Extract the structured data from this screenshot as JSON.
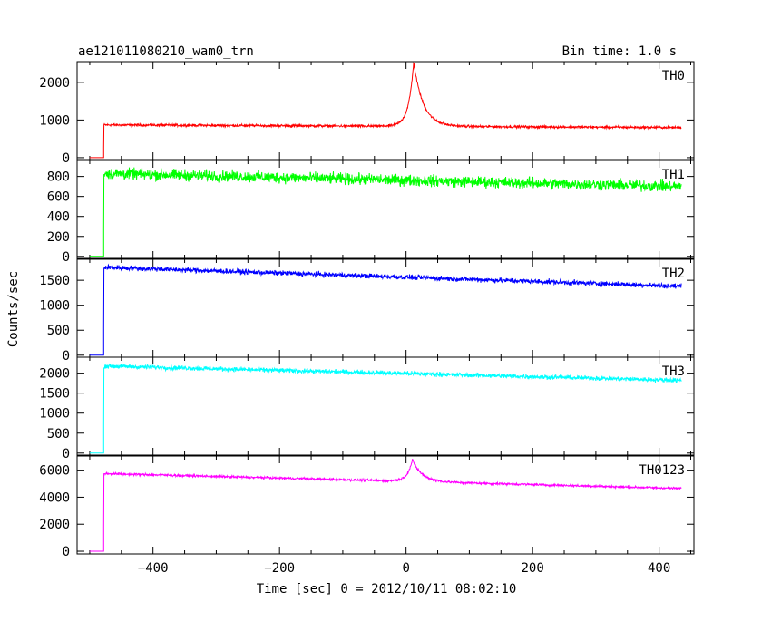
{
  "chart_data": {
    "type": "line",
    "title": "ae121011080210_wam0_trn",
    "bin_time_label": "Bin time: 1.0 s",
    "xlabel": "Time [sec] 0 = 2012/10/11 08:02:10",
    "ylabel": "Counts/sec",
    "xlim": [
      -520,
      455
    ],
    "x_ticks": [
      -400,
      -200,
      0,
      200,
      400
    ],
    "trigger_start": -478,
    "data_end": 435,
    "panels": [
      {
        "name": "TH0",
        "color": "#ff0000",
        "ylim": [
          -50,
          2550
        ],
        "y_ticks": [
          0,
          1000,
          2000
        ],
        "baseline_start": 870,
        "baseline_end": 800,
        "noise": 45,
        "peak": {
          "t": 12,
          "amplitude": 1700,
          "rise": 8,
          "decay": 15
        }
      },
      {
        "name": "TH1",
        "color": "#00ff00",
        "ylim": [
          -20,
          960
        ],
        "y_ticks": [
          0,
          200,
          400,
          600,
          800
        ],
        "baseline_start": 830,
        "baseline_end": 700,
        "noise": 80,
        "peak": null
      },
      {
        "name": "TH2",
        "color": "#0000ff",
        "ylim": [
          -40,
          1920
        ],
        "y_ticks": [
          0,
          500,
          1000,
          1500
        ],
        "baseline_start": 1760,
        "baseline_end": 1380,
        "noise": 70,
        "peak": null
      },
      {
        "name": "TH3",
        "color": "#00ffff",
        "ylim": [
          -50,
          2400
        ],
        "y_ticks": [
          0,
          500,
          1000,
          1500,
          2000
        ],
        "baseline_start": 2180,
        "baseline_end": 1820,
        "noise": 80,
        "peak": null
      },
      {
        "name": "TH0123",
        "color": "#ff00ff",
        "ylim": [
          -200,
          7050
        ],
        "y_ticks": [
          0,
          2000,
          4000,
          6000
        ],
        "baseline_start": 5750,
        "baseline_end": 4650,
        "noise": 120,
        "peak": {
          "t": 10,
          "amplitude": 1600,
          "rise": 8,
          "decay": 15
        }
      }
    ]
  }
}
